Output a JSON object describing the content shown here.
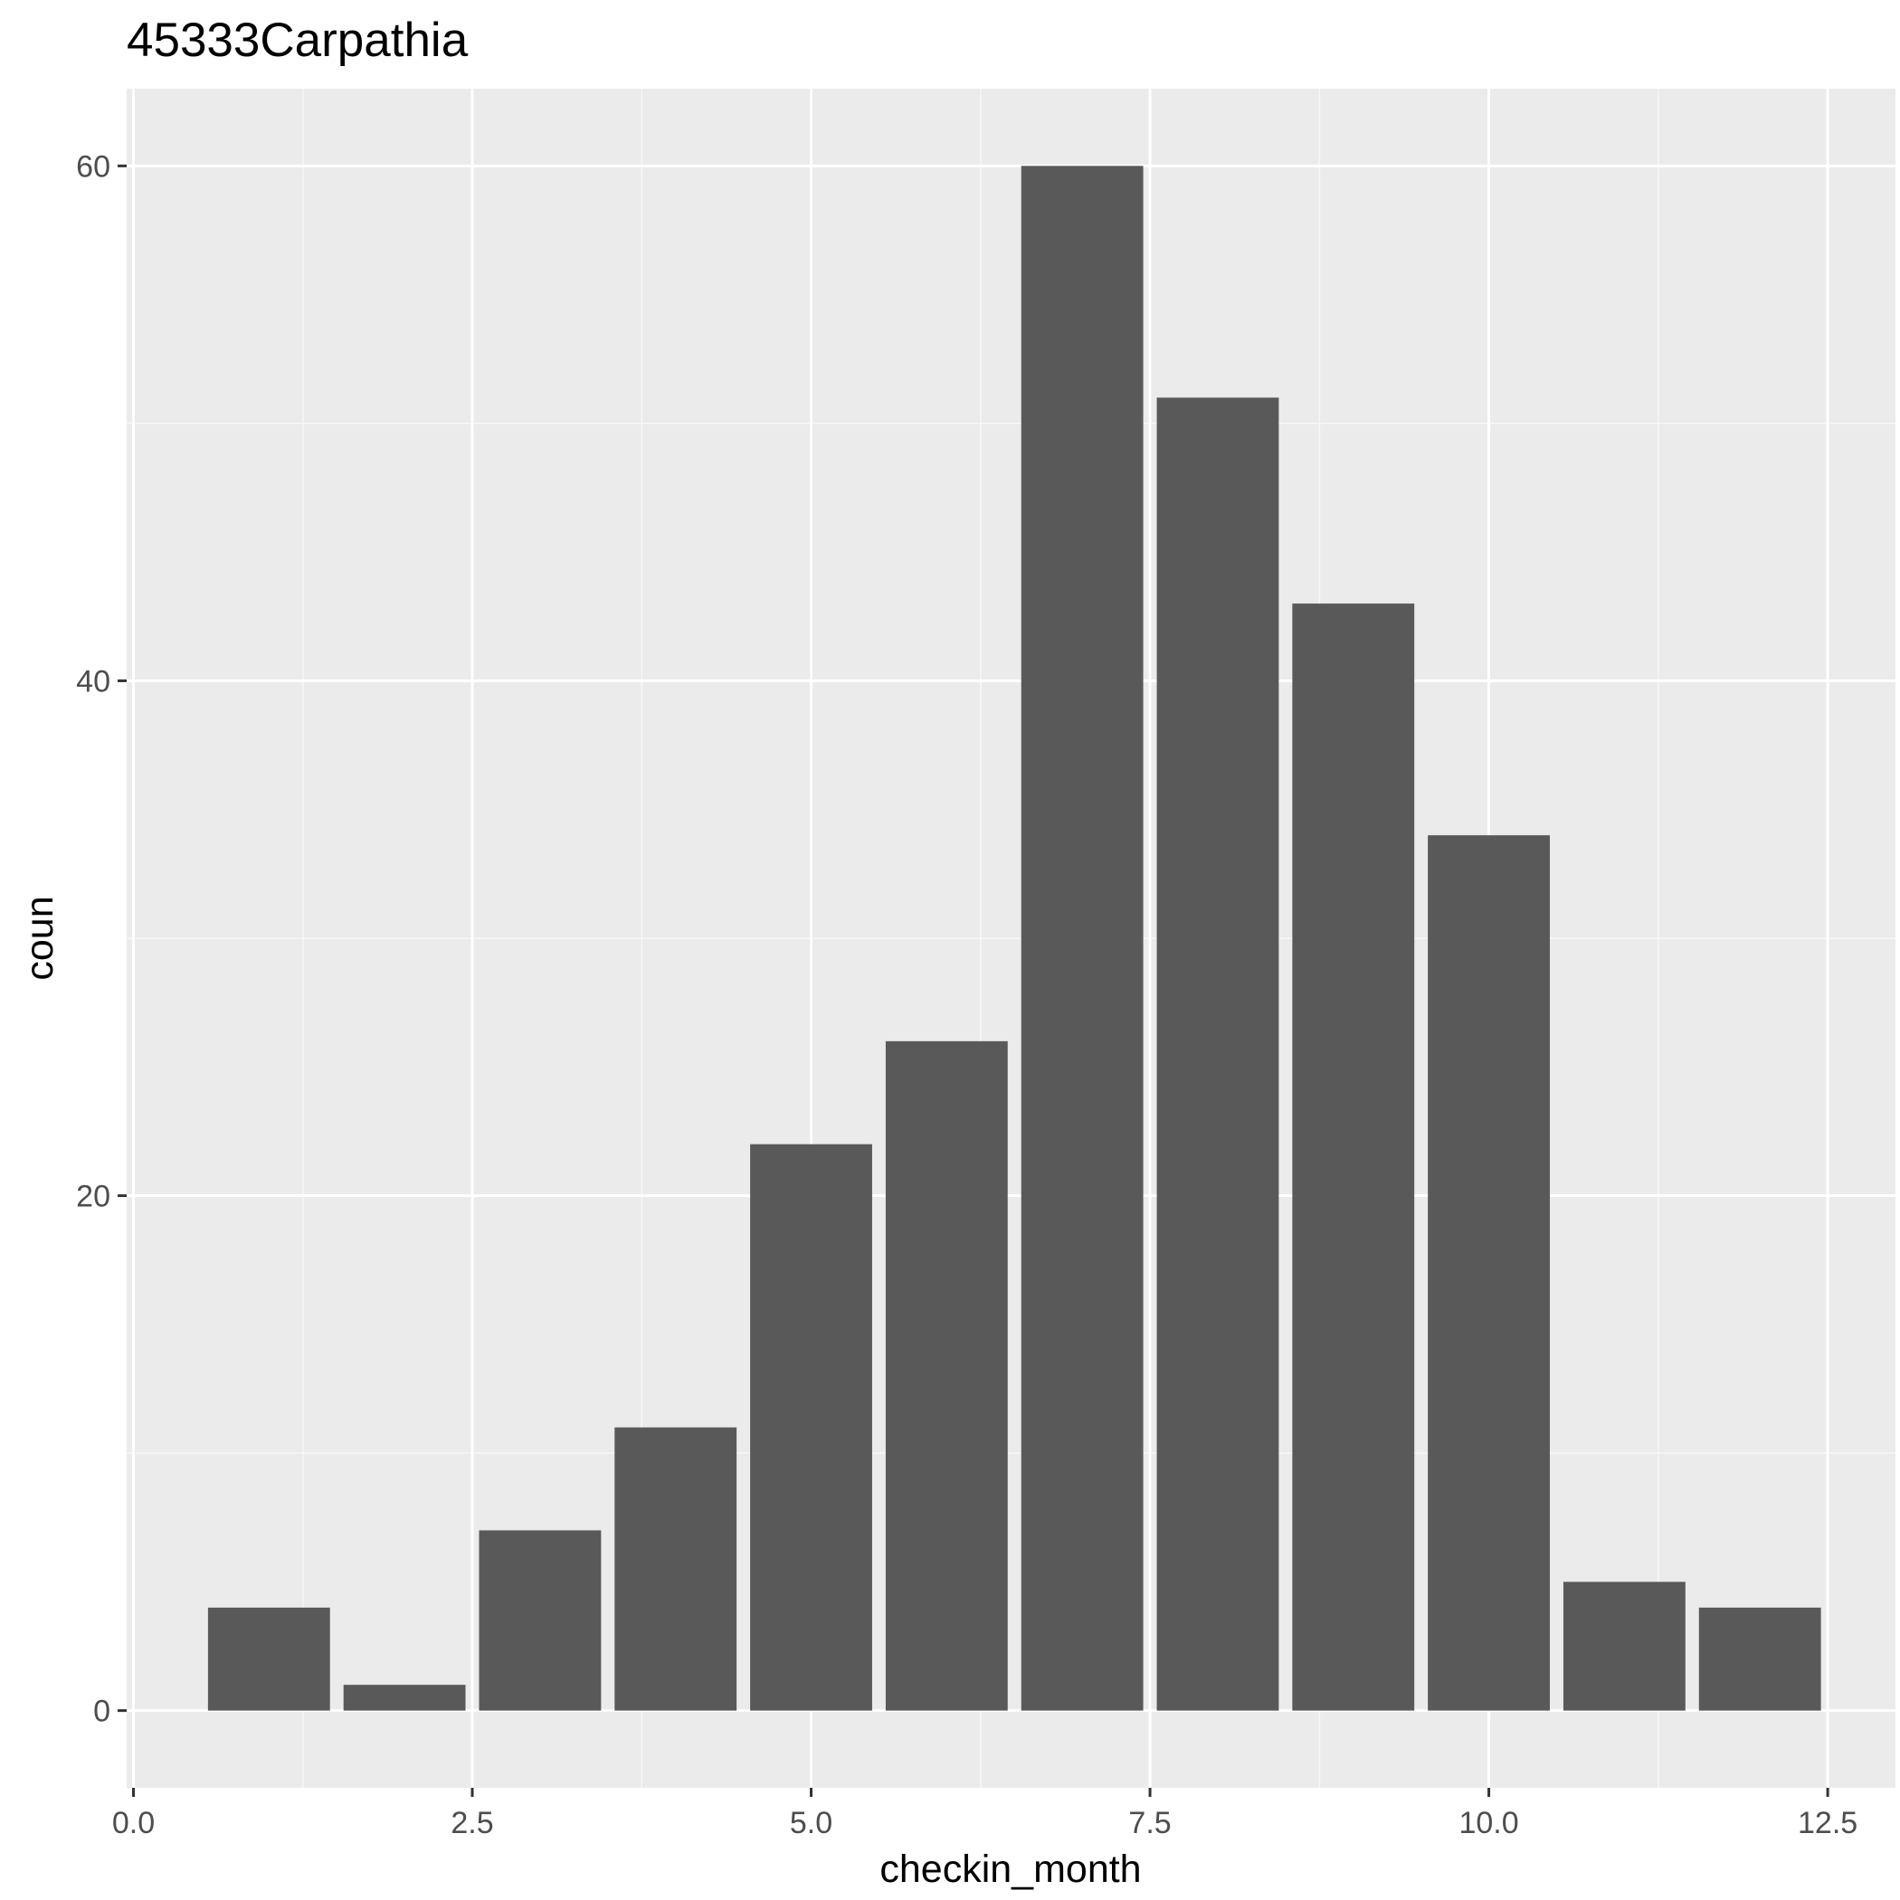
{
  "chart_data": {
    "type": "bar",
    "title": "45333Carpathia",
    "xlabel": "checkin_month",
    "ylabel": "coun",
    "x": [
      1,
      2,
      3,
      4,
      5,
      6,
      7,
      8,
      9,
      10,
      11,
      12
    ],
    "values": [
      4,
      1,
      7,
      11,
      22,
      26,
      60,
      51,
      43,
      34,
      5,
      4
    ],
    "xlim": [
      -0.05,
      13.0
    ],
    "ylim": [
      -3,
      63
    ],
    "x_ticks": [
      0.0,
      2.5,
      5.0,
      7.5,
      10.0,
      12.5
    ],
    "x_tick_labels": [
      "0.0",
      "2.5",
      "5.0",
      "7.5",
      "10.0",
      "12.5"
    ],
    "y_ticks": [
      0,
      20,
      40,
      60
    ],
    "y_tick_labels": [
      "0",
      "20",
      "40",
      "60"
    ],
    "grid": true,
    "colors": {
      "panel_background": "#ebebeb",
      "grid_major": "#ffffff",
      "grid_minor": "#f7f7f7",
      "bar_fill": "#595959",
      "tick_color": "#333333"
    }
  }
}
